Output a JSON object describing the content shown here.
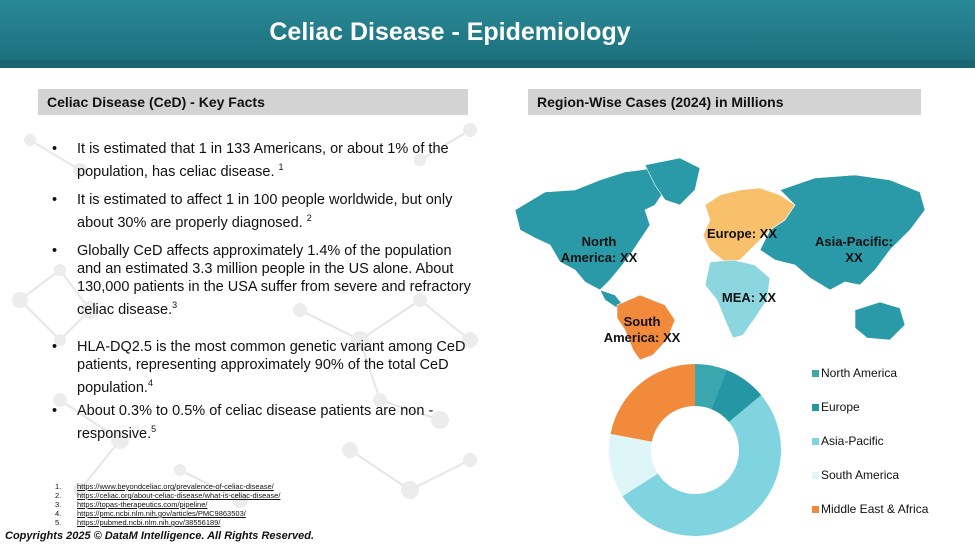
{
  "header": {
    "title": "Celiac Disease - Epidemiology"
  },
  "key_facts": {
    "heading": "Celiac Disease (CeD) - Key Facts",
    "bullet": "•",
    "items": [
      {
        "text": "It is estimated that 1 in 133 Americans, or about 1% of the population, has celiac disease.",
        "ref": "1"
      },
      {
        "text": "It is estimated to affect 1 in 100 people worldwide, but only about 30% are properly diagnosed.",
        "ref": "2"
      },
      {
        "text": "Globally CeD affects approximately 1.4% of the population and an estimated 3.3 million people in the  US alone. About 130,000 patients in the USA suffer from severe and refractory celiac disease.",
        "ref": "3"
      },
      {
        "text": "HLA-DQ2.5 is the most common genetic variant among CeD patients, representing approximately 90% of the total  CeD population.",
        "ref": "4"
      },
      {
        "text": "About 0.3% to 0.5% of celiac disease patients are non - responsive.",
        "ref": "5"
      }
    ]
  },
  "references": [
    {
      "num": "1.",
      "url": "https://www.beyondceliac.org/prevalence-of-celiac-disease/"
    },
    {
      "num": "2.",
      "url": "https://celiac.org/about-celiac-disease/what-is-celiac-disease/"
    },
    {
      "num": "3.",
      "url": "https://topas-therapeutics.com/pipeline/"
    },
    {
      "num": "4.",
      "url": "https://pmc.ncbi.nlm.nih.gov/articles/PMC9863503/"
    },
    {
      "num": "5.",
      "url": "https://pubmed.ncbi.nlm.nih.gov/38556189/"
    }
  ],
  "regions": {
    "heading": "Region-Wise Cases (2024) in Millions",
    "map_labels": {
      "north_america": "North America: XX",
      "europe": "Europe: XX",
      "asia_pacific": "Asia-Pacific: XX",
      "mea": "MEA: XX",
      "south_america": "South America: XX"
    },
    "colors": {
      "north_america": "#2a9aa8",
      "europe": "#f8c06a",
      "asia_pacific": "#2a9aa8",
      "mea": "#8cd6e0",
      "south_america": "#f28a3c"
    }
  },
  "chart_data": {
    "type": "pie",
    "categories": [
      "North America",
      "Europe",
      "Asia-Pacific",
      "South America",
      "Middle East & Africa"
    ],
    "values": [
      6,
      8,
      52,
      12,
      22
    ],
    "colors": [
      "#3aa6ae",
      "#2596a4",
      "#80d4e0",
      "#dff6f8",
      "#f28a3c"
    ],
    "donut": true,
    "legend": "right"
  },
  "footer": {
    "copyright": "Copyrights 2025 © DataM Intelligence. All Rights Reserved."
  }
}
